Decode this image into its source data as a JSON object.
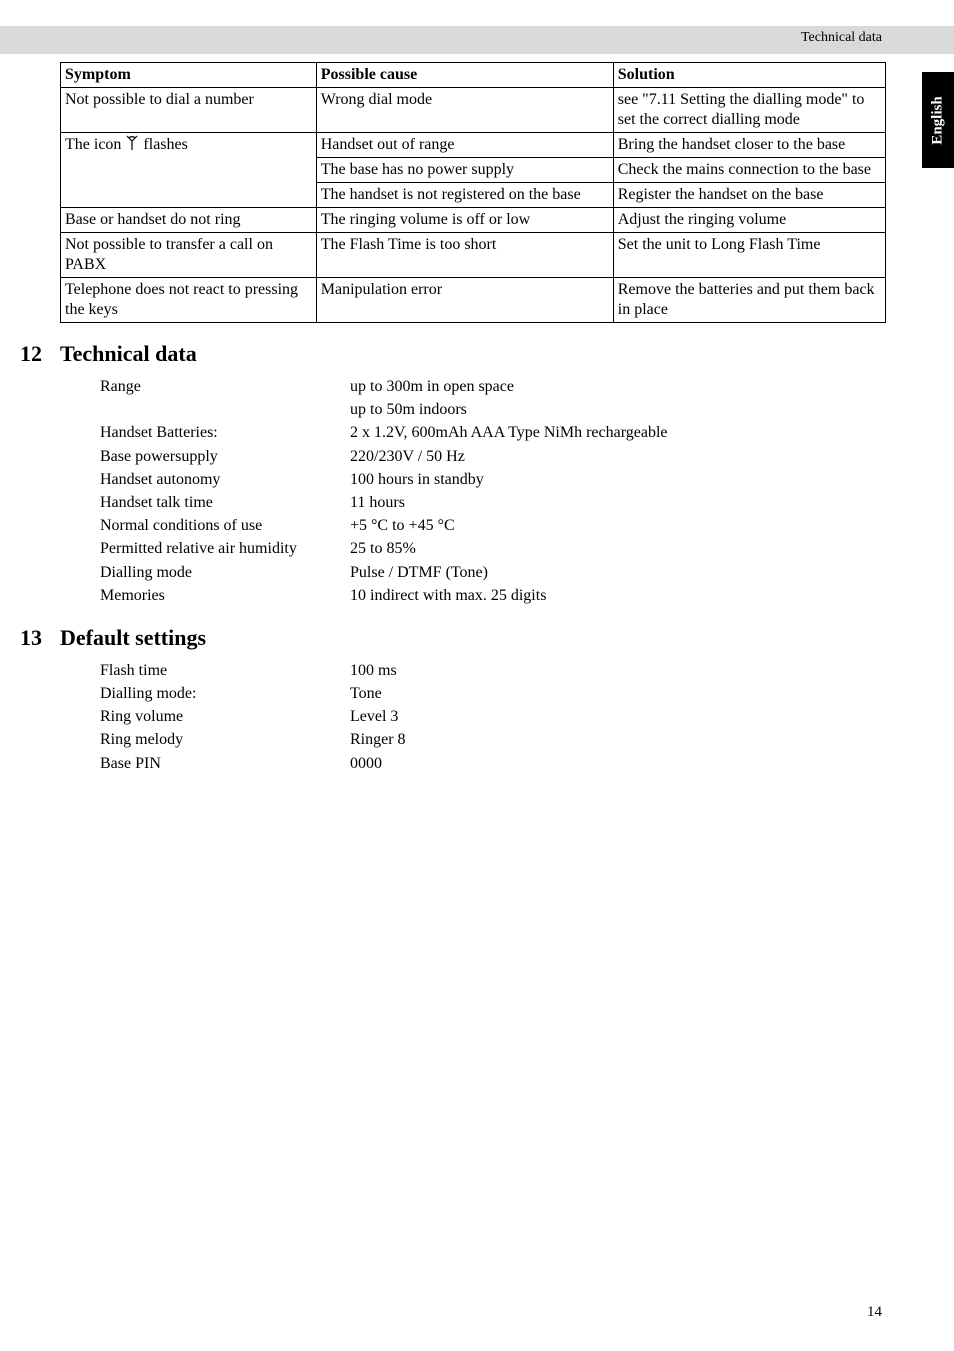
{
  "header": {
    "running_title": "Technical data",
    "tab_label": "English",
    "page_number": "14"
  },
  "table": {
    "headers": [
      "Symptom",
      "Possible cause",
      "Solution"
    ],
    "rows": [
      {
        "cells": [
          "Not possible to dial a number",
          "Wrong dial mode",
          "see \"7.11 Setting the dialling mode\" to set the correct dialling mode"
        ],
        "topless": [
          false,
          false,
          false
        ],
        "bottomless": [
          false,
          false,
          false
        ]
      },
      {
        "cells": [
          "The icon __ICON__ flashes",
          "Handset out of range",
          "Bring the handset closer to the base"
        ],
        "topless": [
          false,
          false,
          false
        ],
        "bottomless": [
          true,
          false,
          false
        ],
        "icon": true
      },
      {
        "cells": [
          "",
          "The base has no power supply",
          "Check the mains connection to the base"
        ],
        "topless": [
          true,
          false,
          false
        ],
        "bottomless": [
          true,
          false,
          false
        ]
      },
      {
        "cells": [
          "",
          "The handset is not registered on the base",
          "Register the handset on the base"
        ],
        "topless": [
          true,
          false,
          false
        ],
        "bottomless": [
          false,
          false,
          false
        ]
      },
      {
        "cells": [
          "Base or handset do not ring",
          "The ringing volume is off or low",
          "Adjust the ringing volume"
        ],
        "topless": [
          false,
          false,
          false
        ],
        "bottomless": [
          false,
          false,
          false
        ]
      },
      {
        "cells": [
          "Not possible to transfer a call on PABX",
          "The Flash Time is too short",
          "Set the unit to Long Flash Time"
        ],
        "topless": [
          false,
          false,
          false
        ],
        "bottomless": [
          false,
          false,
          false
        ]
      },
      {
        "cells": [
          "Telephone does not react to pressing the keys",
          "Manipulation error",
          "Remove the batteries and put them back in place"
        ],
        "topless": [
          false,
          false,
          false
        ],
        "bottomless": [
          false,
          false,
          false
        ]
      }
    ]
  },
  "sections": {
    "s12": {
      "num": "12",
      "title": "Technical data"
    },
    "s13": {
      "num": "13",
      "title": "Default settings"
    }
  },
  "techdata": [
    {
      "k": "Range",
      "v": "up to 300m in open space\nup to 50m indoors"
    },
    {
      "k": "Handset Batteries:",
      "v": "2 x 1.2V, 600mAh AAA Type NiMh rechargeable"
    },
    {
      "k": "Base powersupply",
      "v": "220/230V / 50 Hz"
    },
    {
      "k": "Handset autonomy",
      "v": "100 hours in standby"
    },
    {
      "k": "Handset talk time",
      "v": "11 hours"
    },
    {
      "k": "Normal conditions of use",
      "v": "+5 °C to +45 °C"
    },
    {
      "k": "Permitted relative air humidity",
      "v": "25 to 85%"
    },
    {
      "k": "Dialling mode",
      "v": "Pulse / DTMF (Tone)"
    },
    {
      "k": "Memories",
      "v": "10 indirect with max. 25 digits"
    }
  ],
  "defaults": [
    {
      "k": "Flash time",
      "v": "100 ms"
    },
    {
      "k": "Dialling mode:",
      "v": "Tone"
    },
    {
      "k": "Ring volume",
      "v": "Level 3"
    },
    {
      "k": "Ring melody",
      "v": "Ringer 8"
    },
    {
      "k": "Base PIN",
      "v": "0000"
    }
  ]
}
